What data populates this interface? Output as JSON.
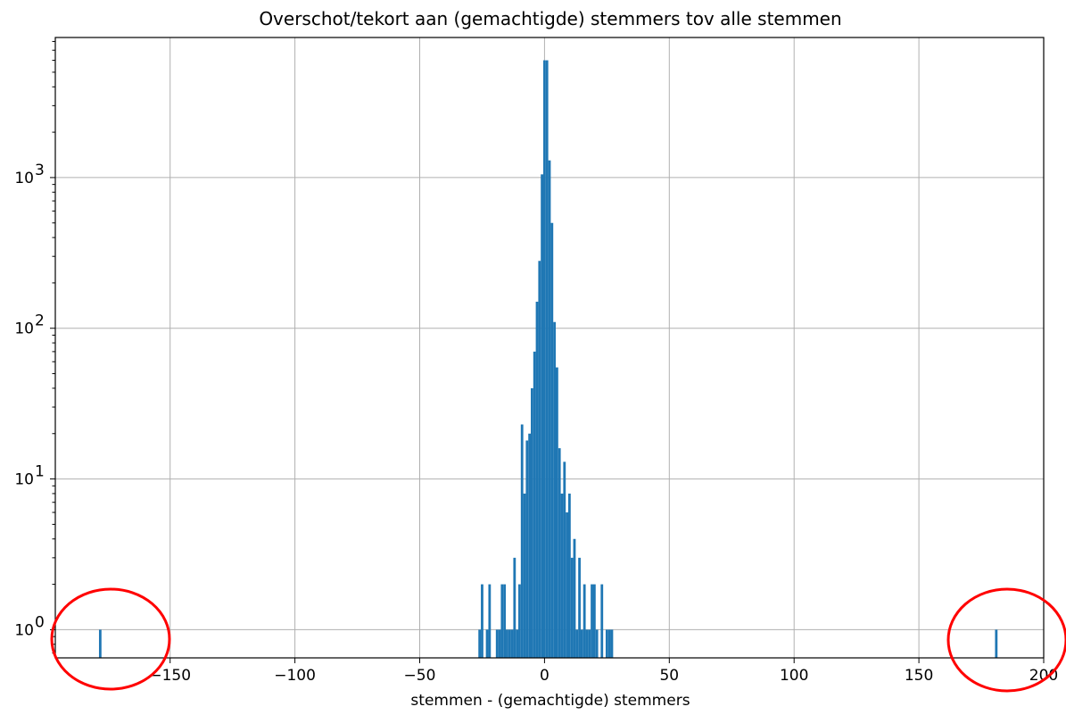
{
  "chart_data": {
    "type": "bar",
    "title": "Overschot/tekort aan (gemachtigde) stemmers tov alle stemmen",
    "xlabel": "stemmen - (gemachtigde) stemmers",
    "ylabel": "",
    "xlim": [
      -196,
      200
    ],
    "ylim": [
      0.65,
      8500
    ],
    "yscale": "log",
    "grid": true,
    "bin_width": 1,
    "x_ticks": [
      {
        "value": -150,
        "label": "−150"
      },
      {
        "value": -100,
        "label": "−100"
      },
      {
        "value": -50,
        "label": "−50"
      },
      {
        "value": 0,
        "label": "0"
      },
      {
        "value": 50,
        "label": "50"
      },
      {
        "value": 100,
        "label": "100"
      },
      {
        "value": 150,
        "label": "150"
      },
      {
        "value": 200,
        "label": "200"
      }
    ],
    "y_ticks": [
      {
        "value": 1,
        "base": "10",
        "exp": "0"
      },
      {
        "value": 10,
        "base": "10",
        "exp": "1"
      },
      {
        "value": 100,
        "base": "10",
        "exp": "2"
      },
      {
        "value": 1000,
        "base": "10",
        "exp": "3"
      }
    ],
    "bars": [
      {
        "x": -178,
        "count": 1
      },
      {
        "x": -26,
        "count": 1
      },
      {
        "x": -25,
        "count": 2
      },
      {
        "x": -23,
        "count": 1
      },
      {
        "x": -22,
        "count": 2
      },
      {
        "x": -19,
        "count": 1
      },
      {
        "x": -18,
        "count": 1
      },
      {
        "x": -17,
        "count": 2
      },
      {
        "x": -16,
        "count": 2
      },
      {
        "x": -15,
        "count": 1
      },
      {
        "x": -14,
        "count": 1
      },
      {
        "x": -13,
        "count": 1
      },
      {
        "x": -12,
        "count": 3
      },
      {
        "x": -11,
        "count": 1
      },
      {
        "x": -10,
        "count": 2
      },
      {
        "x": -9,
        "count": 23
      },
      {
        "x": -8,
        "count": 8
      },
      {
        "x": -7,
        "count": 18
      },
      {
        "x": -6,
        "count": 20
      },
      {
        "x": -5,
        "count": 40
      },
      {
        "x": -4,
        "count": 70
      },
      {
        "x": -3,
        "count": 150
      },
      {
        "x": -2,
        "count": 280
      },
      {
        "x": -1,
        "count": 1050
      },
      {
        "x": 0,
        "count": 6000
      },
      {
        "x": 1,
        "count": 6000
      },
      {
        "x": 2,
        "count": 1300
      },
      {
        "x": 3,
        "count": 500
      },
      {
        "x": 4,
        "count": 110
      },
      {
        "x": 5,
        "count": 55
      },
      {
        "x": 6,
        "count": 16
      },
      {
        "x": 7,
        "count": 8
      },
      {
        "x": 8,
        "count": 13
      },
      {
        "x": 9,
        "count": 6
      },
      {
        "x": 10,
        "count": 8
      },
      {
        "x": 11,
        "count": 3
      },
      {
        "x": 12,
        "count": 4
      },
      {
        "x": 13,
        "count": 1
      },
      {
        "x": 14,
        "count": 3
      },
      {
        "x": 15,
        "count": 1
      },
      {
        "x": 16,
        "count": 2
      },
      {
        "x": 17,
        "count": 1
      },
      {
        "x": 18,
        "count": 1
      },
      {
        "x": 19,
        "count": 2
      },
      {
        "x": 20,
        "count": 2
      },
      {
        "x": 21,
        "count": 1
      },
      {
        "x": 23,
        "count": 2
      },
      {
        "x": 25,
        "count": 1
      },
      {
        "x": 26,
        "count": 1
      },
      {
        "x": 27,
        "count": 1
      },
      {
        "x": 181,
        "count": 1
      }
    ],
    "highlight_color": "#ff0000",
    "bar_color": "#1f77b4"
  }
}
